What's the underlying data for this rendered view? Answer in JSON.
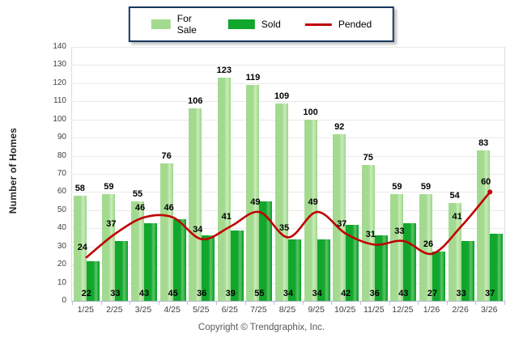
{
  "chart_data": {
    "type": "bar",
    "title": "",
    "ylabel": "Number of Homes",
    "ylim": [
      0,
      140
    ],
    "ytick_step": 10,
    "grid": true,
    "legend_position": "top",
    "categories": [
      "1/25",
      "2/25",
      "3/25",
      "4/25",
      "5/25",
      "6/25",
      "7/25",
      "8/25",
      "9/25",
      "10/25",
      "11/25",
      "12/25",
      "1/26",
      "2/26",
      "3/26"
    ],
    "series": [
      {
        "name": "For Sale",
        "type": "bar",
        "color": "#A3DA90",
        "highlight": "#CBECBD",
        "values": [
          58,
          59,
          55,
          76,
          106,
          123,
          119,
          109,
          100,
          92,
          75,
          59,
          59,
          54,
          83
        ]
      },
      {
        "name": "Sold",
        "type": "bar",
        "color": "#11A62C",
        "highlight": "#5FC468",
        "values": [
          22,
          33,
          43,
          45,
          36,
          39,
          55,
          34,
          34,
          42,
          36,
          43,
          27,
          33,
          37
        ]
      },
      {
        "name": "Pended",
        "type": "line",
        "color": "#C00000",
        "values": [
          24,
          37,
          46,
          46,
          34,
          41,
          49,
          35,
          49,
          37,
          31,
          33,
          26,
          41,
          60
        ]
      }
    ]
  },
  "footer": {
    "copyright": "Copyright © Trendgraphix, Inc."
  },
  "colors": {
    "legend_border": "#17375D",
    "gridline": "#E9E9E9",
    "axis": "#AEB8C8",
    "tick_text": "#404040",
    "label_text": "#000000",
    "copyright_text": "#595959"
  }
}
